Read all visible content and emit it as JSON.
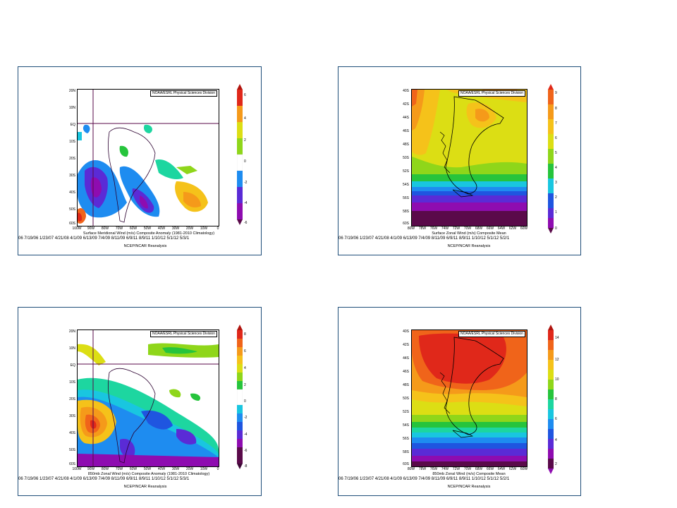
{
  "panels": {
    "p1": {
      "credit": "NOAA/ESRL Physical Sciences Division",
      "title": "Surface Meridional Wind (m/s) Composite Anomaly (1981-2010 Climatology)",
      "dates": "06 7/19/06 1/23/07 4/21/08 4/1/09 6/13/09 7/4/09 8/11/09 6/9/11 8/9/11 1/10/12 5/1/12 5/3/1",
      "source": "NCEP/NCAR Reanalysis",
      "lat_labels": [
        "20N",
        "10N",
        "EQ",
        "10S",
        "20S",
        "30S",
        "40S",
        "50S",
        "60S"
      ],
      "lon_labels": [
        "100W",
        "90W",
        "80W",
        "70W",
        "60W",
        "50W",
        "40W",
        "30W",
        "20W",
        "10W",
        "0"
      ],
      "colorbar": [
        "6",
        "4",
        "2",
        "0",
        "-2",
        "-4",
        "-6"
      ]
    },
    "p2": {
      "credit": "NOAA/ESRL Physical Sciences Division",
      "title": "Surface Zonal Wind (m/s) Composite Mean",
      "dates": "06 7/19/06 1/23/07 4/21/08 4/1/09 6/13/09 7/4/09 8/11/09 6/9/11 8/9/11 1/10/12 5/1/12 5/2/1",
      "source": "NCEP/NCAR Reanalysis",
      "lat_labels": [
        "40S",
        "42S",
        "44S",
        "46S",
        "48S",
        "50S",
        "52S",
        "54S",
        "56S",
        "58S",
        "60S"
      ],
      "lon_labels": [
        "80W",
        "78W",
        "76W",
        "74W",
        "72W",
        "70W",
        "68W",
        "66W",
        "64W",
        "62W",
        "60W"
      ],
      "colorbar": [
        "9",
        "8",
        "7",
        "6",
        "5",
        "4",
        "3",
        "2",
        "1",
        "0"
      ]
    },
    "p3": {
      "credit": "NOAA/ESRL Physical Sciences Division",
      "title": "850mb Zonal Wind (m/s) Composite Anomaly (1981-2010 Climatology)",
      "dates": "06 7/19/06 1/23/07 4/21/08 4/1/09 6/13/09 7/4/09 8/11/09 6/9/11 8/9/11 1/10/12 5/1/12 5/3/1",
      "source": "NCEP/NCAR Reanalysis",
      "lat_labels": [
        "20N",
        "10N",
        "EQ",
        "10S",
        "20S",
        "30S",
        "40S",
        "50S",
        "60S"
      ],
      "lon_labels": [
        "100W",
        "90W",
        "80W",
        "70W",
        "60W",
        "50W",
        "40W",
        "30W",
        "20W",
        "10W",
        "0"
      ],
      "colorbar": [
        "8",
        "6",
        "4",
        "2",
        "0",
        "-2",
        "-4",
        "-6",
        "-8"
      ]
    },
    "p4": {
      "credit": "NOAA/ESRL Physical Sciences Division",
      "title": "850mb Zonal Wind (m/s) Composite Mean",
      "dates": "06 7/19/06 1/23/07 4/21/08 4/1/09 6/13/09 7/4/09 8/11/09 6/9/11 8/9/11 1/10/12 5/1/12 5/2/1",
      "source": "NCEP/NCAR Reanalysis",
      "lat_labels": [
        "40S",
        "42S",
        "44S",
        "46S",
        "48S",
        "50S",
        "52S",
        "54S",
        "56S",
        "58S",
        "60S"
      ],
      "lon_labels": [
        "80W",
        "78W",
        "76W",
        "74W",
        "72W",
        "70W",
        "68W",
        "66W",
        "64W",
        "62W",
        "60W"
      ],
      "colorbar": [
        "14",
        "12",
        "10",
        "8",
        "6",
        "4",
        "2"
      ]
    }
  },
  "colors": {
    "border": "#1f4e79",
    "scale": [
      "#5a0a4a",
      "#8e0cb0",
      "#5a2bd6",
      "#1f55e0",
      "#1e8cf0",
      "#19c6e0",
      "#1dd6a0",
      "#26c43c",
      "#8fd61a",
      "#dcde14",
      "#f5c21a",
      "#f59a1a",
      "#f0641a",
      "#e0281a",
      "#b0140e"
    ]
  }
}
